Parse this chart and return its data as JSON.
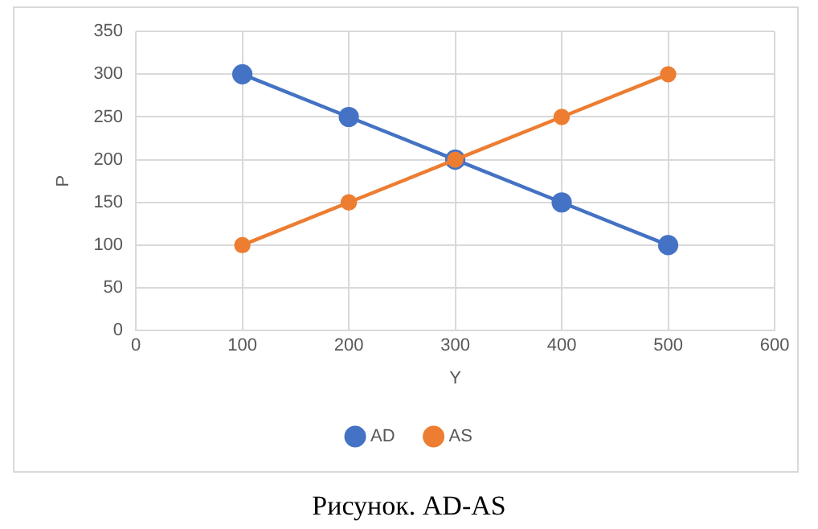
{
  "chart_data": {
    "type": "line",
    "xlabel": "Y",
    "ylabel": "P",
    "x": [
      100,
      200,
      300,
      400,
      500
    ],
    "series": [
      {
        "name": "AD",
        "color": "#4472c4",
        "values": [
          300,
          250,
          200,
          150,
          100
        ]
      },
      {
        "name": "AS",
        "color": "#ed7d31",
        "values": [
          100,
          150,
          200,
          250,
          300
        ]
      }
    ],
    "xlim": [
      0,
      600
    ],
    "xticks": [
      0,
      100,
      200,
      300,
      400,
      500,
      600
    ],
    "ylim": [
      0,
      350
    ],
    "yticks": [
      0,
      50,
      100,
      150,
      200,
      250,
      300,
      350
    ],
    "grid": true,
    "legend": "bottom",
    "marker": "circle",
    "line_style": "solid",
    "annotations": [
      "Рисунок. AD-AS"
    ]
  }
}
